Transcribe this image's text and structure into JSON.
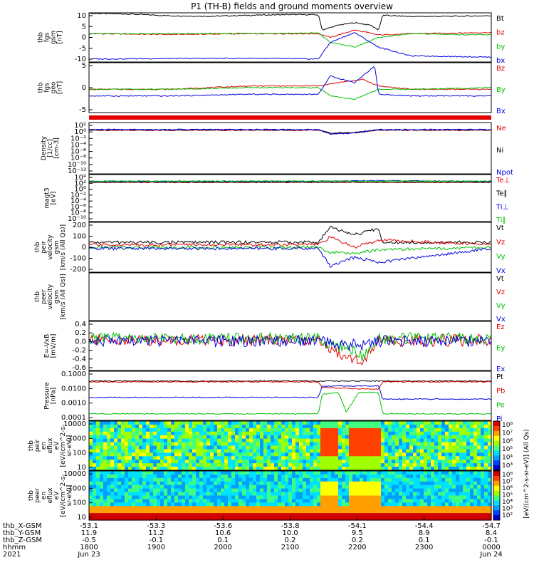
{
  "title": "P1 (TH-B) fields and ground moments overview",
  "colors": {
    "black": "#000000",
    "red": "#e00000",
    "green": "#00c000",
    "blue": "#0000e0"
  },
  "chart_data": [
    {
      "type": "line",
      "name": "fgs_gsm",
      "ylabel": [
        "thb",
        "fgs",
        "gsm",
        "[nT]"
      ],
      "ylim": [
        -10,
        10
      ],
      "yticks": [
        "10",
        "5",
        "0",
        "-5",
        "-10"
      ],
      "legend": [
        "Bt",
        "bz",
        "by",
        "bx"
      ],
      "series": [
        {
          "name": "Bt",
          "color": "#000000",
          "x": [
            0,
            0.1,
            0.2,
            0.3,
            0.4,
            0.5,
            0.57,
            0.58,
            0.62,
            0.66,
            0.7,
            0.72,
            0.73,
            0.8,
            0.9,
            1.0
          ],
          "y": [
            9.8,
            9.5,
            8.8,
            8.6,
            9.0,
            9.3,
            9.2,
            3,
            5,
            6,
            5,
            3,
            9,
            8.5,
            8.6,
            8.8
          ]
        },
        {
          "name": "bz",
          "color": "#e00000",
          "x": [
            0,
            0.2,
            0.4,
            0.57,
            0.6,
            0.66,
            0.72,
            0.8,
            1.0
          ],
          "y": [
            1.5,
            1.2,
            1.5,
            1.5,
            0,
            3,
            1,
            1.5,
            2
          ]
        },
        {
          "name": "by",
          "color": "#00c000",
          "x": [
            0,
            0.2,
            0.4,
            0.57,
            0.6,
            0.66,
            0.72,
            0.8,
            1.0
          ],
          "y": [
            1.5,
            1.5,
            1.6,
            1.8,
            -2,
            -4,
            0,
            1.5,
            1.0
          ]
        },
        {
          "name": "bx",
          "color": "#0000e0",
          "x": [
            0,
            0.2,
            0.4,
            0.57,
            0.6,
            0.66,
            0.72,
            0.8,
            1.0
          ],
          "y": [
            -8.8,
            -8.6,
            -8.5,
            -8.8,
            -2,
            2,
            -4,
            -7.5,
            -8
          ]
        }
      ]
    },
    {
      "type": "line",
      "name": "fgs_geo",
      "ylabel": [
        "thb",
        "fgs",
        "geo",
        "[nT]"
      ],
      "ylim": [
        -7,
        8
      ],
      "yticks": [
        "5",
        "0",
        "-5"
      ],
      "legend": [
        "Bz",
        "By",
        "Bx"
      ],
      "series": [
        {
          "name": "Bz",
          "color": "#e00000",
          "x": [
            0,
            0.2,
            0.4,
            0.57,
            0.62,
            0.68,
            0.72,
            0.8,
            1.0
          ],
          "y": [
            0,
            0,
            1,
            1,
            2,
            3,
            1,
            0,
            0
          ]
        },
        {
          "name": "By",
          "color": "#00c000",
          "x": [
            0,
            0.2,
            0.4,
            0.57,
            0.6,
            0.66,
            0.72,
            0.8,
            1.0
          ],
          "y": [
            0,
            0,
            0.5,
            0.5,
            -2,
            -3,
            0,
            0,
            0.5
          ]
        },
        {
          "name": "Bx",
          "color": "#0000e0",
          "x": [
            0,
            0.2,
            0.4,
            0.57,
            0.6,
            0.66,
            0.71,
            0.72,
            0.8,
            1.0
          ],
          "y": [
            -2,
            -2,
            -1.5,
            -1.5,
            4,
            2,
            7,
            -1.5,
            -2,
            -2
          ]
        }
      ]
    },
    {
      "type": "line",
      "name": "density",
      "ylabel": [
        "Density",
        "[1/cc]",
        "[cm-3]"
      ],
      "ylim": [
        -12,
        2
      ],
      "yticks": [
        "10²",
        "10⁰",
        "10⁻²",
        "10⁻⁴",
        "10⁻⁶",
        "10⁻⁸",
        "10⁻¹⁰",
        "10⁻¹²"
      ],
      "legend": [
        "Ne",
        "Ni",
        "Npot"
      ],
      "series": [
        {
          "name": "Ne",
          "color": "#e00000",
          "x": [
            0,
            0.57,
            0.6,
            0.66,
            0.72,
            1.0
          ],
          "y": [
            -0.1,
            -0.1,
            -1,
            -0.8,
            -0.1,
            -0.1
          ]
        },
        {
          "name": "Ni",
          "color": "#000000",
          "x": [
            0,
            0.57,
            0.6,
            0.66,
            0.72,
            1.0
          ],
          "y": [
            0.0,
            0.0,
            -0.9,
            -0.7,
            0.0,
            0.0
          ]
        },
        {
          "name": "Npot",
          "color": "#0000e0",
          "x": [
            0,
            0.57,
            0.6,
            0.66,
            0.72,
            1.0
          ],
          "y": [
            0.1,
            0.1,
            -1.1,
            -0.9,
            0.1,
            0.1
          ]
        }
      ]
    },
    {
      "type": "line",
      "name": "temperature",
      "ylabel": [
        "magt3",
        "[eV]"
      ],
      "ylim": [
        -12,
        6
      ],
      "yticks": [
        "10⁴",
        "10²",
        "10⁰",
        "10⁻²",
        "10⁻⁴",
        "10⁻⁶",
        "10⁻⁸",
        "10⁻¹⁰"
      ],
      "legend": [
        "Te⊥",
        "Te∥",
        "Ti⊥",
        "Ti∥"
      ],
      "series": [
        {
          "name": "Te⊥",
          "color": "#e00000",
          "x": [
            0,
            1.0
          ],
          "y": [
            3.0,
            3.0
          ]
        },
        {
          "name": "Te∥",
          "color": "#000000",
          "x": [
            0,
            1.0
          ],
          "y": [
            3.1,
            3.1
          ]
        },
        {
          "name": "Ti⊥",
          "color": "#0000e0",
          "x": [
            0,
            0.57,
            0.7,
            1.0
          ],
          "y": [
            3.4,
            3.4,
            3.7,
            3.4
          ]
        },
        {
          "name": "Ti∥",
          "color": "#00c000",
          "x": [
            0,
            1.0
          ],
          "y": [
            3.5,
            3.5
          ]
        }
      ]
    },
    {
      "type": "line",
      "name": "velocity_gsm",
      "ylabel": [
        "thb",
        "peir",
        "velocity",
        "gsm",
        "[km/s (All Qs)]"
      ],
      "ylim": [
        -200,
        200
      ],
      "yticks": [
        "200",
        "100",
        "0",
        "-100",
        "-200"
      ],
      "legend": [
        "Vt",
        "Vz",
        "Vy",
        "Vx"
      ],
      "series": [
        {
          "name": "Vt",
          "color": "#000000",
          "x": [
            0,
            0.57,
            0.6,
            0.66,
            0.72,
            0.73,
            1.0
          ],
          "y": [
            40,
            40,
            160,
            100,
            150,
            40,
            40
          ]
        },
        {
          "name": "Vz",
          "color": "#e00000",
          "x": [
            0,
            0.57,
            0.6,
            0.66,
            0.72,
            1.0
          ],
          "y": [
            20,
            20,
            80,
            0,
            60,
            20
          ]
        },
        {
          "name": "Vy",
          "color": "#00c000",
          "x": [
            0,
            0.57,
            0.6,
            0.66,
            0.72,
            1.0
          ],
          "y": [
            0,
            0,
            -40,
            -50,
            -20,
            0
          ]
        },
        {
          "name": "Vx",
          "color": "#0000e0",
          "x": [
            0,
            0.57,
            0.6,
            0.66,
            0.72,
            1.0
          ],
          "y": [
            -10,
            -10,
            -150,
            -80,
            -120,
            -10
          ]
        }
      ]
    },
    {
      "type": "line",
      "name": "velocity_empty",
      "ylabel": [
        "thb",
        "peer",
        "velocity",
        "gsm",
        "[km/s (All Qs)]"
      ],
      "legend": [
        "Vt",
        "Vz",
        "Vy",
        "Vx"
      ],
      "series": []
    },
    {
      "type": "line",
      "name": "efield",
      "ylabel": [
        "E=-VxB",
        "[mV/m]"
      ],
      "ylim": [
        -0.6,
        0.4
      ],
      "yticks": [
        "0.4",
        "0.2",
        "0.0",
        "-0.2",
        "-0.4",
        "-0.6"
      ],
      "legend": [
        "Ez",
        "Ey",
        "Ex"
      ],
      "series": [
        {
          "name": "Ez",
          "color": "#e00000",
          "x": [
            0,
            0.57,
            0.62,
            0.68,
            0.72,
            1.0
          ],
          "y": [
            0.02,
            0.02,
            -0.25,
            -0.4,
            0.0,
            0.02
          ]
        },
        {
          "name": "Ey",
          "color": "#00c000",
          "x": [
            0,
            0.57,
            0.62,
            0.68,
            0.72,
            1.0
          ],
          "y": [
            0.05,
            0.05,
            -0.1,
            -0.3,
            0.05,
            0.05
          ]
        },
        {
          "name": "Ex",
          "color": "#0000e0",
          "x": [
            0,
            0.57,
            0.62,
            0.68,
            0.72,
            1.0
          ],
          "y": [
            0.0,
            0.0,
            -0.05,
            -0.1,
            0.0,
            0.0
          ]
        }
      ]
    },
    {
      "type": "line",
      "name": "pressure",
      "ylabel": [
        "Pressure",
        "[nPa]"
      ],
      "ylim": [
        -4,
        -1
      ],
      "yticks": [
        "0.1000",
        "0.0100",
        "0.0010",
        "0.0001"
      ],
      "legend": [
        "Pt",
        "Pb",
        "Pe",
        "Pi"
      ],
      "series": [
        {
          "name": "Pt",
          "color": "#000000",
          "x": [
            0,
            0.57,
            0.6,
            0.7,
            0.72,
            1.0
          ],
          "y": [
            -1.6,
            -1.6,
            -1.6,
            -1.6,
            -1.6,
            -1.6
          ]
        },
        {
          "name": "Pb",
          "color": "#e00000",
          "x": [
            0,
            0.57,
            0.58,
            0.72,
            0.73,
            1.0
          ],
          "y": [
            -1.65,
            -1.65,
            -2.0,
            -2.1,
            -1.65,
            -1.65
          ]
        },
        {
          "name": "Pe",
          "color": "#00c000",
          "x": [
            0,
            0.57,
            0.58,
            0.62,
            0.64,
            0.67,
            0.72,
            0.73,
            1.0
          ],
          "y": [
            -3.6,
            -3.6,
            -2.4,
            -2.3,
            -3.5,
            -2.3,
            -2.3,
            -3.6,
            -3.6
          ]
        },
        {
          "name": "Pi",
          "color": "#0000e0",
          "x": [
            0,
            0.57,
            0.58,
            0.72,
            0.73,
            1.0
          ],
          "y": [
            -2.6,
            -2.6,
            -1.9,
            -1.9,
            -2.7,
            -2.7
          ]
        }
      ]
    },
    {
      "type": "heatmap",
      "name": "peir_eflux",
      "ylabel": [
        "thb",
        "peir",
        "en",
        "eflux",
        "eV",
        "[eV/(cm^2-s-",
        "sr-eV)]"
      ],
      "ylim": [
        10,
        20000
      ],
      "yticks": [
        "10000",
        "1000",
        "100",
        "10"
      ],
      "colorbar": {
        "ticks": [
          "10⁸",
          "10⁷",
          "10⁶",
          "10⁵",
          "10⁴",
          "10³"
        ],
        "label": "[eV/(cm^2-s-sr-eV)] (All Qs)"
      }
    },
    {
      "type": "heatmap",
      "name": "peer_eflux",
      "ylabel": [
        "thb",
        "peer",
        "en",
        "eflux",
        "eV",
        "[eV/(cm^2-s-",
        "sr-eV)]"
      ],
      "ylim": [
        10,
        20000
      ],
      "yticks": [
        "10000",
        "1000",
        "100",
        "10"
      ],
      "colorbar": {
        "ticks": [
          "10⁸",
          "10⁷",
          "10⁶",
          "10⁵",
          "10⁴",
          "10³",
          "10²"
        ]
      }
    }
  ],
  "x_axis": {
    "row_labels": [
      "thb_X-GSM",
      "thb_Y-GSM",
      "thb_Z-GSM",
      "hhmm",
      "2021"
    ],
    "ticks": [
      {
        "x": 0.0,
        "vals": [
          "-53.1",
          "11.9",
          "-0.5",
          "1800",
          "Jun 23"
        ]
      },
      {
        "x": 0.167,
        "vals": [
          "-53.3",
          "11.2",
          "-0.1",
          "1900",
          ""
        ]
      },
      {
        "x": 0.333,
        "vals": [
          "-53.6",
          "10.6",
          "0.1",
          "2000",
          ""
        ]
      },
      {
        "x": 0.5,
        "vals": [
          "-53.8",
          "10.0",
          "0.2",
          "2100",
          ""
        ]
      },
      {
        "x": 0.667,
        "vals": [
          "-54.1",
          "9.5",
          "0.2",
          "2200",
          ""
        ]
      },
      {
        "x": 0.833,
        "vals": [
          "-54.4",
          "8.9",
          "0.1",
          "2300",
          ""
        ]
      },
      {
        "x": 1.0,
        "vals": [
          "-54.7",
          "8.4",
          "-0.1",
          "0000",
          "Jun 24"
        ]
      }
    ]
  },
  "colorbar_main_label": "[eV/(cm^2-s-sr-eV)] (All Qs)"
}
